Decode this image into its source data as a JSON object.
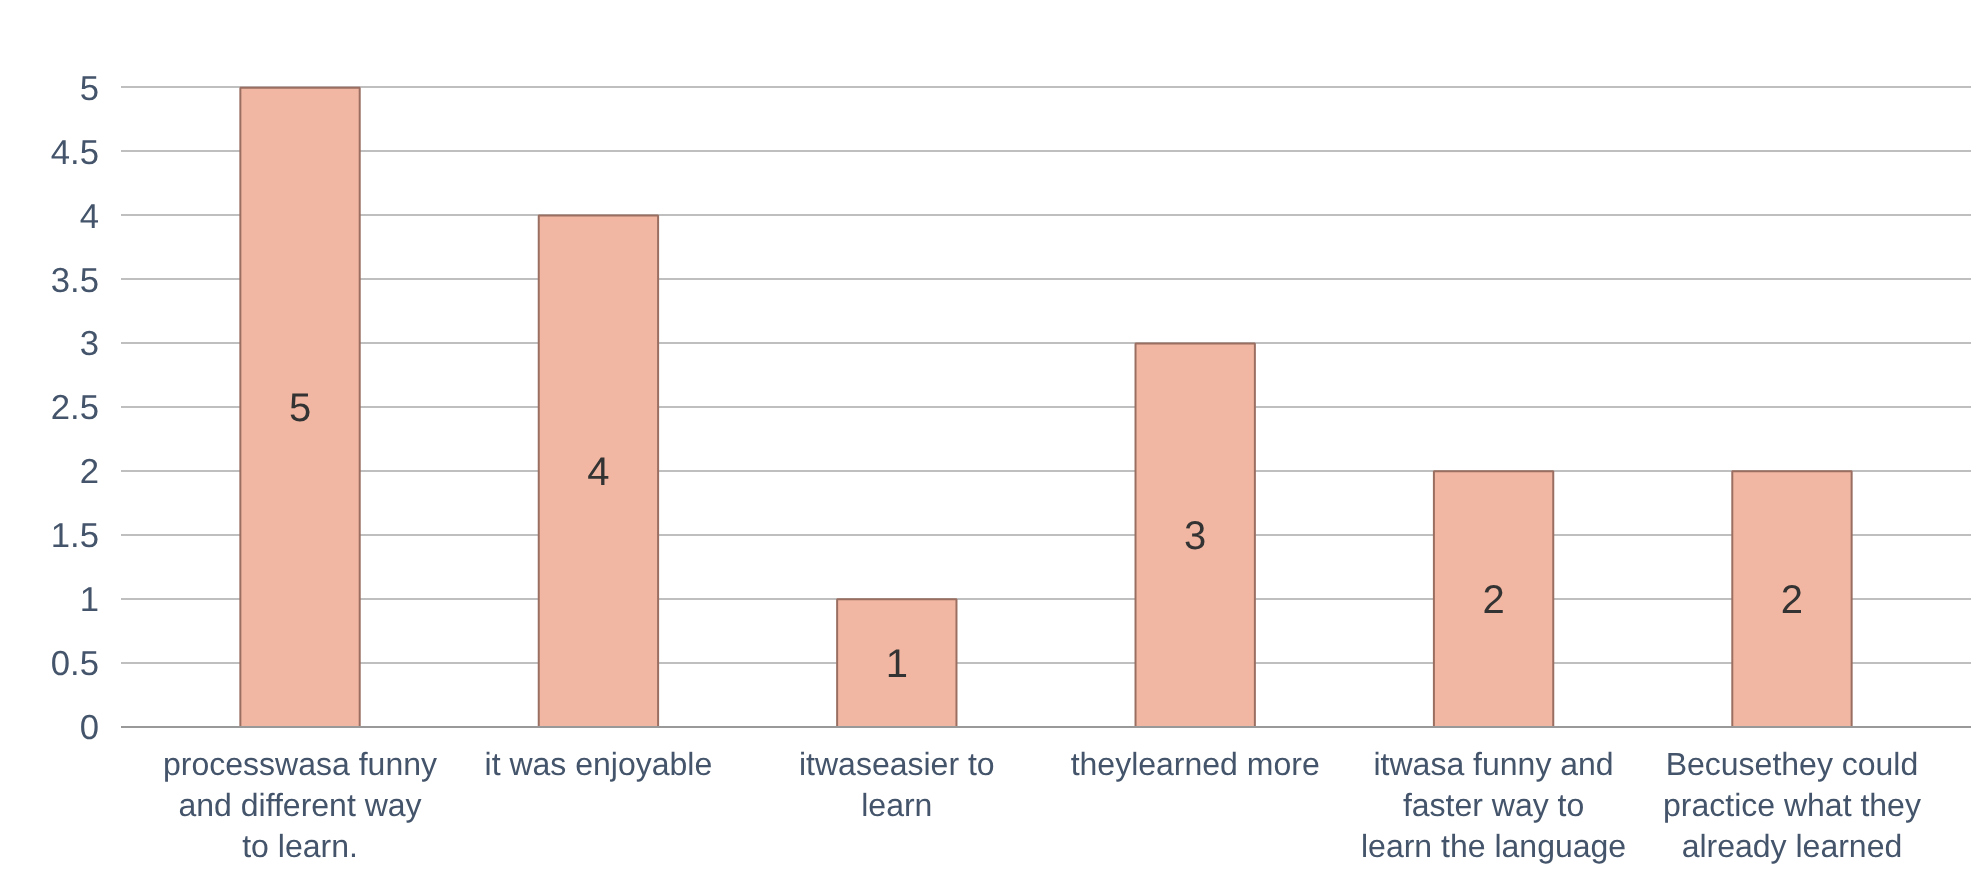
{
  "chart_data": {
    "type": "bar",
    "categories": [
      "processwasa funny and different way to learn.",
      "it was enjoyable",
      "itwaseasier to learn",
      "theylearned more",
      "itwasa funny and faster way to learn the language",
      "Becusethey could practice what they already learned"
    ],
    "values": [
      5,
      4,
      1,
      3,
      2,
      2
    ],
    "color": "#f2b7a2",
    "ylim": [
      0,
      5
    ],
    "yticks": [
      0,
      0.5,
      1,
      1.5,
      2,
      2.5,
      3,
      3.5,
      4,
      4.5,
      5
    ],
    "grid": "y",
    "data_labels": true
  }
}
